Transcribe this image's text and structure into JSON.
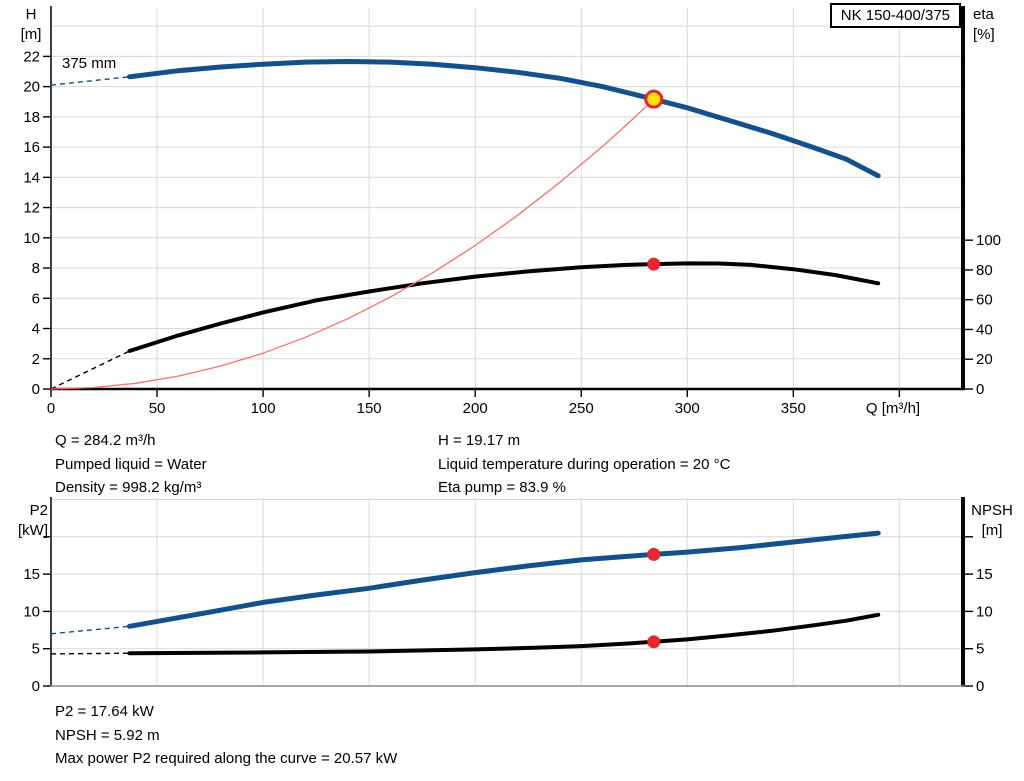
{
  "colors": {
    "curve_blue": "#14508a",
    "curve_black": "#000000",
    "curve_red": "#f4726f",
    "marker_red": "#e8262c",
    "marker_yellow": "#ffe60a",
    "grid": "#d9d9d9",
    "axis": "#000000"
  },
  "pump_label_box": "NK 150-400/375",
  "impeller_diameter_label": "375 mm",
  "top_chart_axis_labels": {
    "left_1": "H",
    "left_2": "[m]",
    "right_1": "eta",
    "right_2": "[%]"
  },
  "bottom_chart_axis_labels": {
    "left_1": "P2",
    "left_2": "[kW]",
    "right_1": "NPSH",
    "right_2": "[m]"
  },
  "operating_point_info": {
    "left": [
      "Q = 284.2 m³/h",
      "Pumped liquid = Water",
      "Density = 998.2 kg/m³"
    ],
    "right": [
      "H = 19.17 m",
      "Liquid temperature during operation = 20 °C",
      "Eta pump = 83.9 %"
    ]
  },
  "power_info": [
    "P2 = 17.64 kW",
    "NPSH = 5.92 m",
    "Max power P2 required along the curve = 20.57 kW"
  ],
  "chart_data": [
    {
      "id": "hq",
      "type": "line",
      "title": "NK 150-400/375",
      "xlabel": "Q [m³/h]",
      "ylabel_left": "H [m]",
      "ylabel_right": "eta [%]",
      "xlim": [
        0,
        430
      ],
      "ylim_left": [
        0,
        25.2
      ],
      "ylim_right": [
        0,
        256
      ],
      "x_ticks": [
        0,
        50,
        100,
        150,
        200,
        250,
        300,
        350
      ],
      "x_ticks_unlabeled": [
        400
      ],
      "x_grid": [
        50,
        100,
        150,
        200,
        250,
        300,
        350,
        400
      ],
      "y_ticks_left": [
        0,
        2,
        4,
        6,
        8,
        10,
        12,
        14,
        16,
        18,
        20,
        22
      ],
      "y_grid_left": [
        2,
        4,
        6,
        8,
        10,
        12,
        14,
        16,
        18,
        20,
        22,
        24
      ],
      "y_ticks_right": [
        0,
        20,
        40,
        60,
        80,
        100
      ],
      "annotation": "375 mm",
      "series": [
        {
          "name": "head-curve-375mm",
          "color": "curve_blue",
          "width": 5,
          "axis": "left",
          "dash_lead": [
            [
              0,
              20.1
            ],
            [
              37,
              20.65
            ]
          ],
          "points": [
            [
              37,
              20.65
            ],
            [
              60,
              21.05
            ],
            [
              80,
              21.3
            ],
            [
              100,
              21.48
            ],
            [
              120,
              21.62
            ],
            [
              140,
              21.66
            ],
            [
              160,
              21.62
            ],
            [
              180,
              21.48
            ],
            [
              200,
              21.25
            ],
            [
              220,
              20.95
            ],
            [
              240,
              20.55
            ],
            [
              260,
              20.0
            ],
            [
              284.2,
              19.17
            ],
            [
              300,
              18.6
            ],
            [
              320,
              17.75
            ],
            [
              340,
              16.9
            ],
            [
              360,
              15.95
            ],
            [
              375,
              15.2
            ],
            [
              390,
              14.1
            ]
          ]
        },
        {
          "name": "efficiency-curve",
          "color": "curve_black",
          "width": 4,
          "axis": "right",
          "dash_lead": [
            [
              0,
              0
            ],
            [
              37,
              25.5
            ]
          ],
          "points": [
            [
              37,
              25.5
            ],
            [
              60,
              36
            ],
            [
              80,
              44
            ],
            [
              100,
              51.5
            ],
            [
              125,
              59.5
            ],
            [
              150,
              65.5
            ],
            [
              175,
              71
            ],
            [
              200,
              75.5
            ],
            [
              225,
              79
            ],
            [
              250,
              81.8
            ],
            [
              270,
              83.3
            ],
            [
              284.2,
              83.9
            ],
            [
              300,
              84.4
            ],
            [
              315,
              84.3
            ],
            [
              330,
              83.4
            ],
            [
              350,
              80.5
            ],
            [
              370,
              76.5
            ],
            [
              390,
              71
            ]
          ]
        },
        {
          "name": "affinity-parabola",
          "color": "curve_red",
          "width": 1.3,
          "axis": "left",
          "points": [
            [
              0,
              0
            ],
            [
              20,
              0.1
            ],
            [
              40,
              0.38
            ],
            [
              60,
              0.85
            ],
            [
              80,
              1.52
            ],
            [
              100,
              2.37
            ],
            [
              120,
              3.42
            ],
            [
              140,
              4.65
            ],
            [
              160,
              6.08
            ],
            [
              180,
              7.69
            ],
            [
              200,
              9.49
            ],
            [
              220,
              11.49
            ],
            [
              240,
              13.67
            ],
            [
              260,
              16.04
            ],
            [
              270,
              17.3
            ],
            [
              278,
              18.34
            ],
            [
              284.2,
              19.17
            ]
          ]
        }
      ],
      "markers": [
        {
          "kind": "duty_point",
          "x": 284.2,
          "y": 19.17,
          "axis": "left"
        },
        {
          "kind": "dot",
          "x": 284.2,
          "y": 83.9,
          "axis": "right"
        }
      ]
    },
    {
      "id": "p2",
      "type": "line",
      "xlabel": "",
      "ylabel_left": "P2 [kW]",
      "ylabel_right": "NPSH [m]",
      "xlim": [
        0,
        430
      ],
      "ylim_left": [
        0,
        25.2
      ],
      "ylim_right": [
        0,
        25.2
      ],
      "x_ticks": [],
      "x_grid": [
        50,
        100,
        150,
        200,
        250,
        300,
        350,
        400
      ],
      "y_ticks_left": [
        0,
        5,
        10,
        15
      ],
      "y_ticks_left_unlabeled": [
        20
      ],
      "y_grid_left": [
        5,
        10,
        15,
        20,
        25
      ],
      "y_ticks_right": [
        0,
        5,
        10,
        15
      ],
      "y_ticks_right_unlabeled": [
        20
      ],
      "series": [
        {
          "name": "p2-power-curve",
          "color": "curve_blue",
          "width": 5,
          "axis": "left",
          "dash_lead": [
            [
              0,
              7.0
            ],
            [
              37,
              8.0
            ]
          ],
          "points": [
            [
              37,
              8.0
            ],
            [
              75,
              9.9
            ],
            [
              100,
              11.2
            ],
            [
              125,
              12.2
            ],
            [
              150,
              13.1
            ],
            [
              175,
              14.2
            ],
            [
              200,
              15.2
            ],
            [
              225,
              16.1
            ],
            [
              250,
              16.9
            ],
            [
              270,
              17.35
            ],
            [
              284.2,
              17.64
            ],
            [
              300,
              17.95
            ],
            [
              325,
              18.55
            ],
            [
              350,
              19.3
            ],
            [
              370,
              19.9
            ],
            [
              390,
              20.5
            ]
          ]
        },
        {
          "name": "npsh-curve",
          "color": "curve_black",
          "width": 4,
          "axis": "left",
          "dash_lead": [
            [
              0,
              4.3
            ],
            [
              37,
              4.4
            ]
          ],
          "points": [
            [
              37,
              4.4
            ],
            [
              100,
              4.5
            ],
            [
              150,
              4.62
            ],
            [
              200,
              4.9
            ],
            [
              230,
              5.15
            ],
            [
              250,
              5.35
            ],
            [
              270,
              5.65
            ],
            [
              284.2,
              5.92
            ],
            [
              300,
              6.25
            ],
            [
              320,
              6.8
            ],
            [
              340,
              7.4
            ],
            [
              360,
              8.15
            ],
            [
              375,
              8.75
            ],
            [
              390,
              9.55
            ]
          ]
        }
      ],
      "markers": [
        {
          "kind": "dot",
          "x": 284.2,
          "y": 17.64,
          "axis": "left"
        },
        {
          "kind": "dot",
          "x": 284.2,
          "y": 5.92,
          "axis": "left"
        }
      ]
    }
  ]
}
